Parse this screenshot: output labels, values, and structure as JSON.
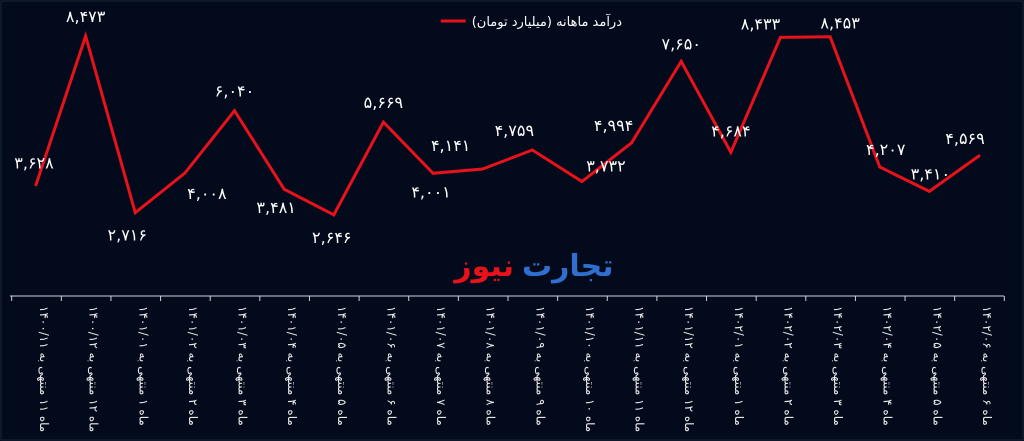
{
  "chart_data": {
    "type": "line",
    "title": "",
    "legend": {
      "label": "درآمد ماهانه (میلیارد تومان)",
      "placement": "top-center"
    },
    "watermark": {
      "part1": "تجارت",
      "part2": "نیوز"
    },
    "categories": [
      "ماه ۱۱ منتهی به ۱۴۰۰/۱۱",
      "ماه ۱۲ منتهی به ۱۴۰۰/۱۲",
      "ماه ۱ منتهی به ۱۴۰۱/۰۱",
      "ماه ۲ منتهی به ۱۴۰۱/۰۲",
      "ماه ۳ منتهی به ۱۴۰۱/۰۳",
      "ماه ۴ منتهی به ۱۴۰۱/۰۴",
      "ماه ۵ منتهی به ۱۴۰۱/۰۵",
      "ماه ۶ منتهی به ۱۴۰۱/۰۶",
      "ماه ۷ منتهی به ۱۴۰۱/۰۷",
      "ماه ۸ منتهی به ۱۴۰۱/۰۸",
      "ماه ۹ منتهی به ۱۴۰۱/۰۹",
      "ماه ۱۰ منتهی به ۱۴۰۱/۱۰",
      "ماه ۱۱ منتهی به ۱۴۰۱/۱۱",
      "ماه ۱۲ منتهی به ۱۴۰۱/۱۲",
      "ماه ۱ منتهی به ۱۴۰۲/۰۱",
      "ماه ۲ منتهی به ۱۴۰۲/۰۲",
      "ماه ۳ منتهی به ۱۴۰۲/۰۳",
      "ماه ۴ منتهی به ۱۴۰۲/۰۴",
      "ماه ۵ منتهی به ۱۴۰۲/۰۵",
      "ماه ۶ منتهی به ۱۴۰۲/۰۶"
    ],
    "series": [
      {
        "name": "درآمد ماهانه (میلیارد تومان)",
        "color": "#e8121b",
        "values": [
          3628,
          8473,
          2716,
          4008,
          6040,
          3481,
          2646,
          5669,
          4001,
          4141,
          4759,
          3732,
          4994,
          7650,
          4684,
          8433,
          8453,
          4207,
          3410,
          4569
        ],
        "data_labels": [
          "۳,۶۲۸",
          "۸,۴۷۳",
          "۲,۷۱۶",
          "۴,۰۰۸",
          "۶,۰۴۰",
          "۳,۴۸۱",
          "۲,۶۴۶",
          "۵,۶۶۹",
          "۴,۰۰۱",
          "۴,۱۴۱",
          "۴,۷۵۹",
          "۳,۷۳۲",
          "۴,۹۹۴",
          "۷,۶۵۰",
          "۴,۶۸۴",
          "۸,۴۳۳",
          "۸,۴۵۳",
          "۴,۲۰۷",
          "۳,۴۱۰",
          "۴,۵۶۹"
        ]
      }
    ],
    "xlabel": "",
    "ylabel": "",
    "ylim": [
      0,
      9650
    ],
    "grid": false
  }
}
